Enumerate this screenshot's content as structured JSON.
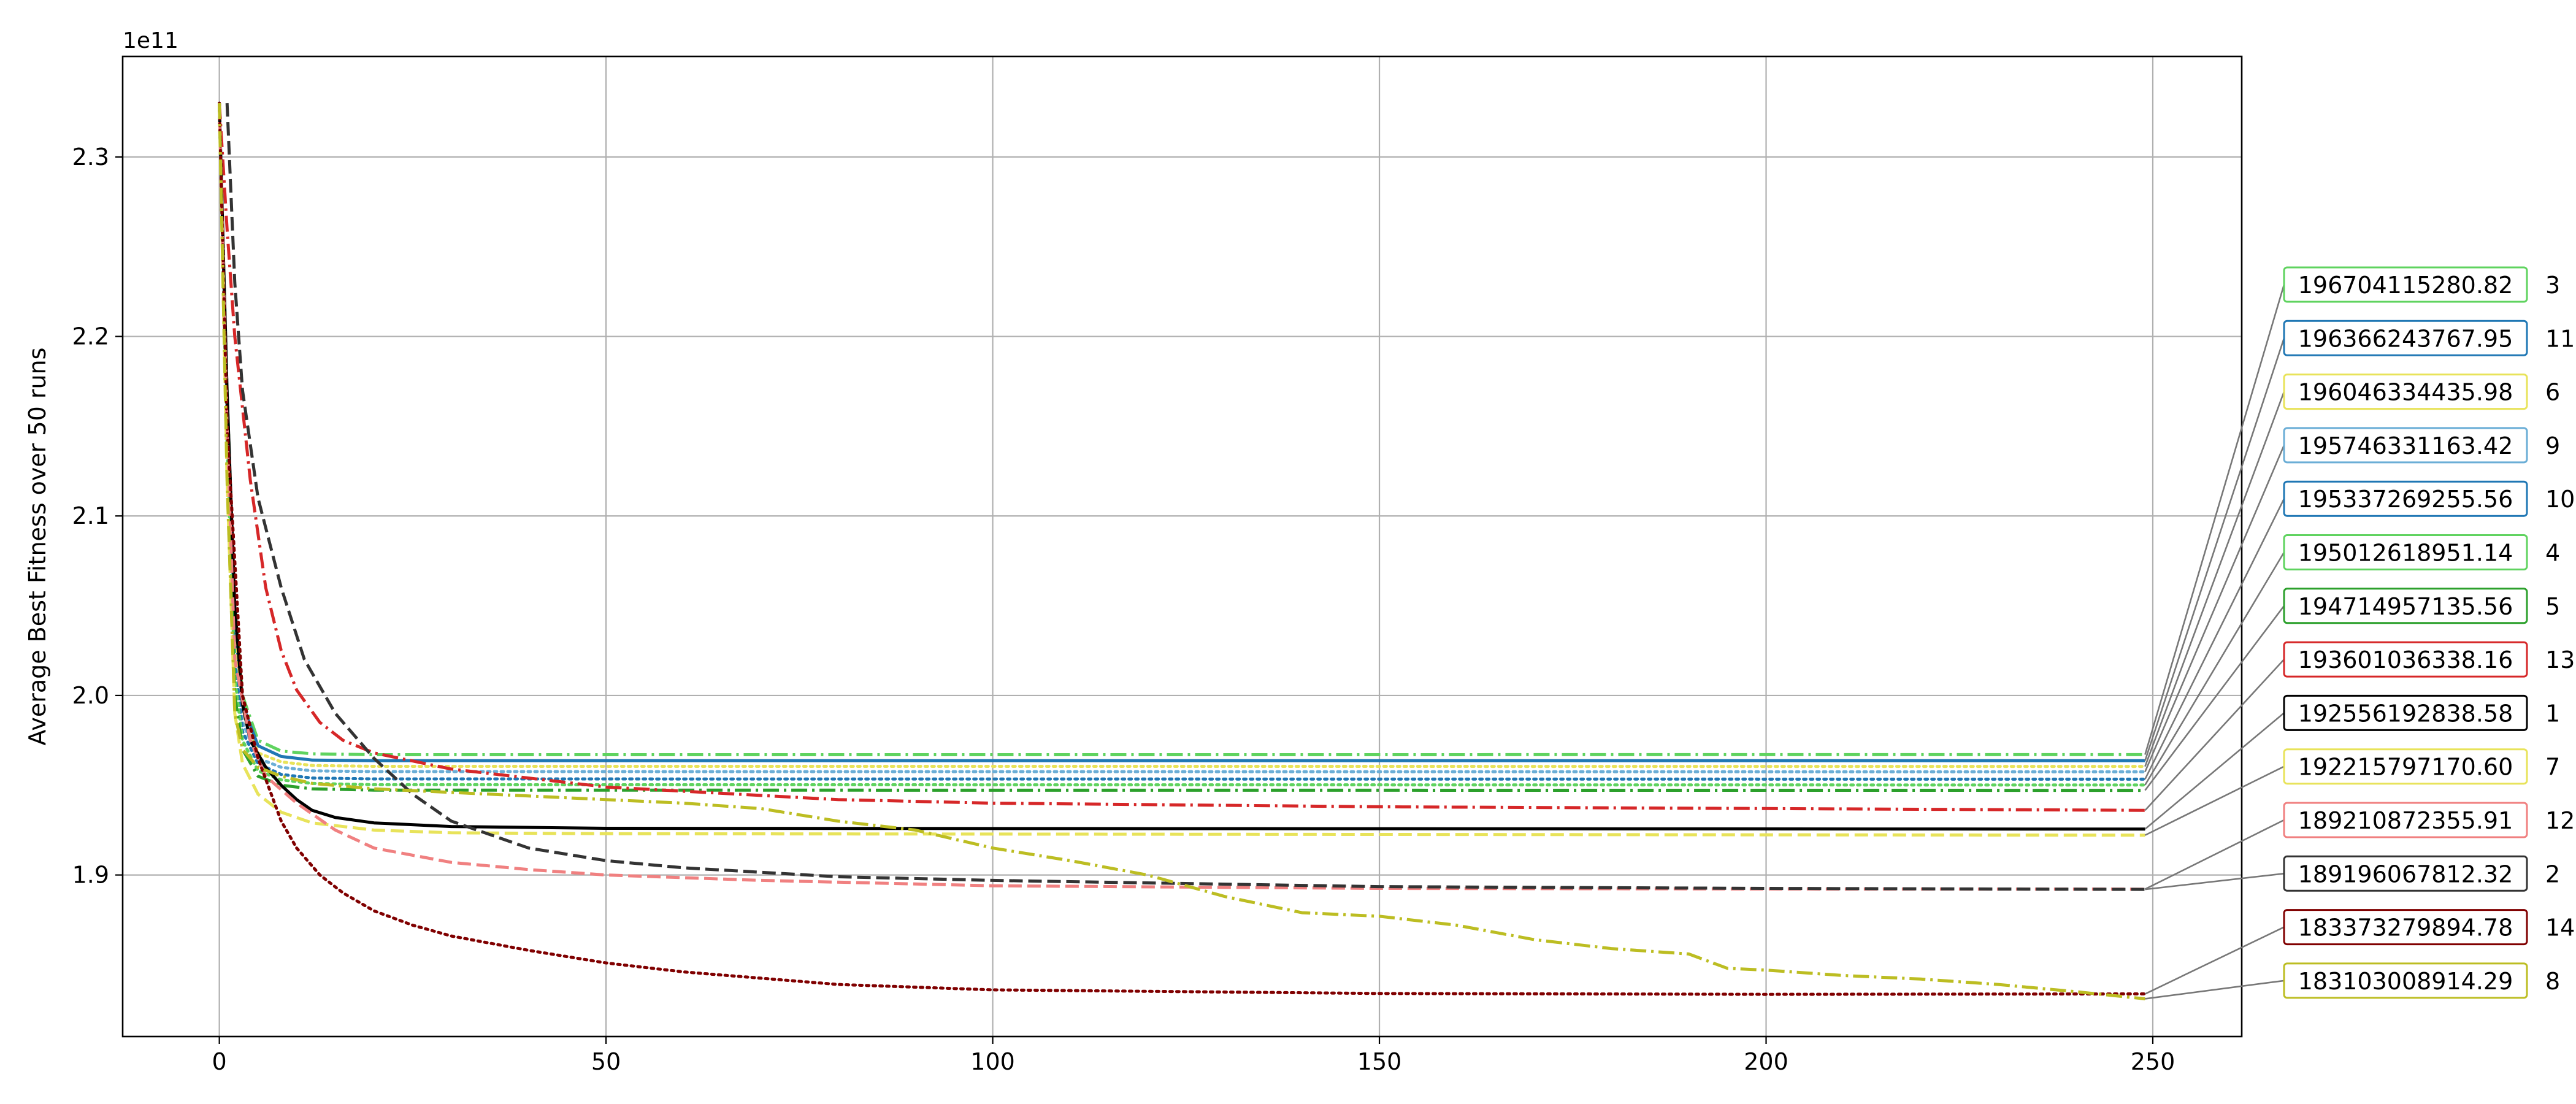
{
  "chart_data": {
    "type": "line",
    "title": "",
    "xlabel": "",
    "ylabel": "Average Best Fitness over 50 runs",
    "y_offset_label": "1e11",
    "y_scale_factor": 100000000000,
    "xlim": [
      -12.5,
      261.5
    ],
    "ylim": [
      181000000000.0,
      235600000000.0
    ],
    "x_ticks": [
      0,
      50,
      100,
      150,
      200,
      250
    ],
    "x_tick_labels": [
      "0",
      "50",
      "100",
      "150",
      "200",
      "250"
    ],
    "y_ticks": [
      190000000000.0,
      200000000000.0,
      210000000000.0,
      220000000000.0,
      230000000000.0
    ],
    "y_tick_labels": [
      "1.9",
      "2.0",
      "2.1",
      "2.2",
      "2.3"
    ],
    "grid": true,
    "legend": "none",
    "series": [
      {
        "label_id": "3",
        "final_value": 196704115280.82,
        "final_label": "196704115280.82",
        "color": "#5fd35f",
        "dash": "dashdot",
        "points": [
          [
            0,
            233000000000.0
          ],
          [
            1,
            217000000000.0
          ],
          [
            2,
            205000000000.0
          ],
          [
            3,
            200000000000.0
          ],
          [
            5,
            197500000000.0
          ],
          [
            8,
            196900000000.0
          ],
          [
            12,
            196750000000.0
          ],
          [
            20,
            196700000000.0
          ],
          [
            249,
            196704000000.0
          ]
        ]
      },
      {
        "label_id": "11",
        "final_value": 196366243767.95,
        "final_label": "196366243767.95",
        "color": "#1f77b4",
        "dash": "solid",
        "points": [
          [
            0,
            233000000000.0
          ],
          [
            1,
            216000000000.0
          ],
          [
            2,
            204000000000.0
          ],
          [
            3,
            199500000000.0
          ],
          [
            5,
            197200000000.0
          ],
          [
            8,
            196600000000.0
          ],
          [
            12,
            196400000000.0
          ],
          [
            20,
            196370000000.0
          ],
          [
            249,
            196366000000.0
          ]
        ]
      },
      {
        "label_id": "6",
        "final_value": 196046334435.98,
        "final_label": "196046334435.98",
        "color": "#e8e35a",
        "dash": "dotted",
        "points": [
          [
            0,
            233000000000.0
          ],
          [
            1,
            216000000000.0
          ],
          [
            2,
            203000000000.0
          ],
          [
            3,
            199000000000.0
          ],
          [
            5,
            196800000000.0
          ],
          [
            8,
            196300000000.0
          ],
          [
            12,
            196100000000.0
          ],
          [
            20,
            196050000000.0
          ],
          [
            249,
            196046000000.0
          ]
        ]
      },
      {
        "label_id": "9",
        "final_value": 195746331163.42,
        "final_label": "195746331163.42",
        "color": "#6baed6",
        "dash": "dotted",
        "points": [
          [
            0,
            233000000000.0
          ],
          [
            1,
            215000000000.0
          ],
          [
            2,
            202000000000.0
          ],
          [
            3,
            198500000000.0
          ],
          [
            5,
            196500000000.0
          ],
          [
            8,
            196000000000.0
          ],
          [
            12,
            195800000000.0
          ],
          [
            20,
            195760000000.0
          ],
          [
            249,
            195746000000.0
          ]
        ]
      },
      {
        "label_id": "10",
        "final_value": 195337269255.56,
        "final_label": "195337269255.56",
        "color": "#1f77b4",
        "dash": "dotted",
        "points": [
          [
            0,
            233000000000.0
          ],
          [
            1,
            215000000000.0
          ],
          [
            2,
            202000000000.0
          ],
          [
            3,
            198000000000.0
          ],
          [
            5,
            196200000000.0
          ],
          [
            8,
            195600000000.0
          ],
          [
            12,
            195400000000.0
          ],
          [
            20,
            195350000000.0
          ],
          [
            249,
            195337000000.0
          ]
        ]
      },
      {
        "label_id": "4",
        "final_value": 195012618951.14,
        "final_label": "195012618951.14",
        "color": "#5fd35f",
        "dash": "dotted",
        "points": [
          [
            0,
            233000000000.0
          ],
          [
            1,
            214000000000.0
          ],
          [
            2,
            201000000000.0
          ],
          [
            3,
            197500000000.0
          ],
          [
            5,
            195800000000.0
          ],
          [
            8,
            195300000000.0
          ],
          [
            12,
            195100000000.0
          ],
          [
            20,
            195030000000.0
          ],
          [
            249,
            195013000000.0
          ]
        ]
      },
      {
        "label_id": "5",
        "final_value": 194714957135.56,
        "final_label": "194714957135.56",
        "color": "#2ca02c",
        "dash": "dashdot",
        "points": [
          [
            0,
            233000000000.0
          ],
          [
            1,
            214000000000.0
          ],
          [
            2,
            200000000000.0
          ],
          [
            3,
            197000000000.0
          ],
          [
            5,
            195500000000.0
          ],
          [
            8,
            195000000000.0
          ],
          [
            12,
            194800000000.0
          ],
          [
            20,
            194730000000.0
          ],
          [
            249,
            194715000000.0
          ]
        ]
      },
      {
        "label_id": "13",
        "final_value": 193601036338.16,
        "final_label": "193601036338.16",
        "color": "#d62728",
        "dash": "dashdot",
        "points": [
          [
            0,
            233000000000.0
          ],
          [
            1,
            226000000000.0
          ],
          [
            2,
            220000000000.0
          ],
          [
            4,
            212000000000.0
          ],
          [
            6,
            206000000000.0
          ],
          [
            8,
            202500000000.0
          ],
          [
            10,
            200300000000.0
          ],
          [
            13,
            198500000000.0
          ],
          [
            16,
            197500000000.0
          ],
          [
            20,
            196800000000.0
          ],
          [
            30,
            195900000000.0
          ],
          [
            50,
            194900000000.0
          ],
          [
            80,
            194200000000.0
          ],
          [
            100,
            194000000000.0
          ],
          [
            150,
            193800000000.0
          ],
          [
            200,
            193700000000.0
          ],
          [
            249,
            193601000000.0
          ]
        ]
      },
      {
        "label_id": "1",
        "final_value": 192556192838.58,
        "final_label": "192556192838.58",
        "color": "#000000",
        "dash": "solid",
        "points": [
          [
            0,
            233000000000.0
          ],
          [
            1,
            217000000000.0
          ],
          [
            2,
            205000000000.0
          ],
          [
            3,
            199500000000.0
          ],
          [
            4,
            197500000000.0
          ],
          [
            6,
            196000000000.0
          ],
          [
            8,
            195000000000.0
          ],
          [
            10,
            194200000000.0
          ],
          [
            12,
            193600000000.0
          ],
          [
            15,
            193200000000.0
          ],
          [
            20,
            192900000000.0
          ],
          [
            30,
            192700000000.0
          ],
          [
            50,
            192600000000.0
          ],
          [
            249,
            192556000000.0
          ]
        ]
      },
      {
        "label_id": "7",
        "final_value": 192215797170.6,
        "final_label": "192215797170.60",
        "color": "#e8e35a",
        "dash": "dashed",
        "points": [
          [
            0,
            233000000000.0
          ],
          [
            1,
            212000000000.0
          ],
          [
            2,
            199000000000.0
          ],
          [
            3,
            196200000000.0
          ],
          [
            5,
            194500000000.0
          ],
          [
            8,
            193500000000.0
          ],
          [
            12,
            192900000000.0
          ],
          [
            20,
            192500000000.0
          ],
          [
            30,
            192350000000.0
          ],
          [
            50,
            192300000000.0
          ],
          [
            249,
            192216000000.0
          ]
        ]
      },
      {
        "label_id": "12",
        "final_value": 189210872355.91,
        "final_label": "189210872355.91",
        "color": "#f08080",
        "dash": "dashed",
        "points": [
          [
            0,
            233000000000.0
          ],
          [
            1,
            215000000000.0
          ],
          [
            2,
            202000000000.0
          ],
          [
            4,
            197500000000.0
          ],
          [
            6,
            195500000000.0
          ],
          [
            10,
            194000000000.0
          ],
          [
            15,
            192500000000.0
          ],
          [
            20,
            191500000000.0
          ],
          [
            30,
            190700000000.0
          ],
          [
            40,
            190300000000.0
          ],
          [
            50,
            190000000000.0
          ],
          [
            70,
            189700000000.0
          ],
          [
            100,
            189400000000.0
          ],
          [
            150,
            189250000000.0
          ],
          [
            200,
            189220000000.0
          ],
          [
            249,
            189211000000.0
          ]
        ]
      },
      {
        "label_id": "2",
        "final_value": 189196067812.32,
        "final_label": "189196067812.32",
        "color": "#333333",
        "dash": "dashed",
        "points": [
          [
            1,
            233000000000.0
          ],
          [
            2,
            223000000000.0
          ],
          [
            3,
            217000000000.0
          ],
          [
            5,
            211000000000.0
          ],
          [
            8,
            206000000000.0
          ],
          [
            11,
            202000000000.0
          ],
          [
            15,
            199000000000.0
          ],
          [
            20,
            196500000000.0
          ],
          [
            25,
            194500000000.0
          ],
          [
            30,
            193000000000.0
          ],
          [
            40,
            191500000000.0
          ],
          [
            50,
            190800000000.0
          ],
          [
            60,
            190400000000.0
          ],
          [
            80,
            189900000000.0
          ],
          [
            100,
            189700000000.0
          ],
          [
            150,
            189350000000.0
          ],
          [
            200,
            189250000000.0
          ],
          [
            249,
            189196000000.0
          ]
        ]
      },
      {
        "label_id": "14",
        "final_value": 183373279894.78,
        "final_label": "183373279894.78",
        "color": "#800000",
        "dash": "dotted",
        "points": [
          [
            0,
            233000000000.0
          ],
          [
            1,
            215000000000.0
          ],
          [
            3,
            200000000000.0
          ],
          [
            5,
            196500000000.0
          ],
          [
            8,
            193000000000.0
          ],
          [
            10,
            191500000000.0
          ],
          [
            13,
            190000000000.0
          ],
          [
            16,
            189000000000.0
          ],
          [
            20,
            188000000000.0
          ],
          [
            25,
            187200000000.0
          ],
          [
            30,
            186600000000.0
          ],
          [
            40,
            185800000000.0
          ],
          [
            50,
            185100000000.0
          ],
          [
            60,
            184600000000.0
          ],
          [
            80,
            183900000000.0
          ],
          [
            100,
            183600000000.0
          ],
          [
            150,
            183400000000.0
          ],
          [
            200,
            183350000000.0
          ],
          [
            249,
            183373000000.0
          ]
        ]
      },
      {
        "label_id": "8",
        "final_value": 183103008914.29,
        "final_label": "183103008914.29",
        "color": "#bcbd22",
        "dash": "dashdot",
        "points": [
          [
            0,
            233000000000.0
          ],
          [
            1,
            212000000000.0
          ],
          [
            2,
            199000000000.0
          ],
          [
            3,
            197000000000.0
          ],
          [
            5,
            196000000000.0
          ],
          [
            8,
            195500000000.0
          ],
          [
            12,
            195100000000.0
          ],
          [
            20,
            194800000000.0
          ],
          [
            30,
            194600000000.0
          ],
          [
            40,
            194400000000.0
          ],
          [
            50,
            194200000000.0
          ],
          [
            60,
            194000000000.0
          ],
          [
            70,
            193700000000.0
          ],
          [
            80,
            193000000000.0
          ],
          [
            90,
            192500000000.0
          ],
          [
            100,
            191500000000.0
          ],
          [
            110,
            190800000000.0
          ],
          [
            120,
            190000000000.0
          ],
          [
            130,
            188800000000.0
          ],
          [
            140,
            187900000000.0
          ],
          [
            150,
            187700000000.0
          ],
          [
            160,
            187200000000.0
          ],
          [
            170,
            186400000000.0
          ],
          [
            180,
            185900000000.0
          ],
          [
            190,
            185600000000.0
          ],
          [
            195,
            184800000000.0
          ],
          [
            200,
            184700000000.0
          ],
          [
            210,
            184400000000.0
          ],
          [
            220,
            184200000000.0
          ],
          [
            230,
            183900000000.0
          ],
          [
            240,
            183500000000.0
          ],
          [
            249,
            183103000000.0
          ]
        ]
      }
    ]
  }
}
